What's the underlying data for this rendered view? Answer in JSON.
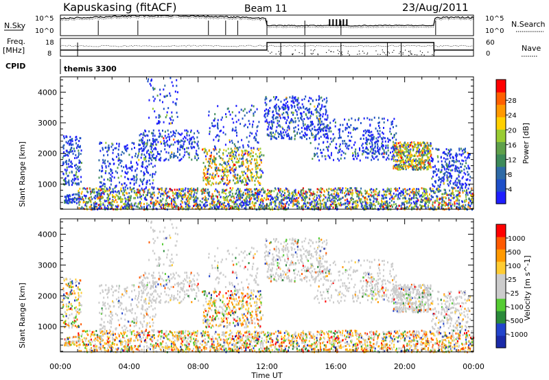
{
  "header": {
    "station": "Kapuskasing (fitACF)",
    "beam": "Beam 11",
    "date": "23/Aug/2011"
  },
  "strip_labels": {
    "n_sky": "N.Sky",
    "freq_line1": "Freq.",
    "freq_line2": "[MHz]",
    "cpid": "CPID",
    "n_search": "N.Search",
    "nave": "Nave",
    "cpid_value": "themis 3300",
    "noise_ticks": [
      "10^5",
      "10^0"
    ],
    "freq_ticks": [
      "18",
      "8"
    ],
    "nave_ticks": [
      "60",
      "0"
    ]
  },
  "chart_data": [
    {
      "type": "heatmap",
      "title": "",
      "ylabel": "Slant Range [km]",
      "xlabel": "",
      "ylim": [
        180,
        4500
      ],
      "xlim_hours": [
        0,
        24
      ],
      "yticks": [
        1000,
        2000,
        3000,
        4000
      ],
      "colorbar": {
        "label": "Power [dB]",
        "ticks": [
          "4",
          "8",
          "12",
          "16",
          "20",
          "24",
          "28"
        ],
        "colors": [
          "#1f1fff",
          "#1e4fc8",
          "#2e6aa6",
          "#3d8a5a",
          "#5fa04a",
          "#99cc33",
          "#ffd000",
          "#ff9900",
          "#ff6000",
          "#ff0000"
        ]
      }
    },
    {
      "type": "heatmap",
      "title": "",
      "ylabel": "Slant Range [km]",
      "xlabel": "Time UT",
      "ylim": [
        180,
        4500
      ],
      "xlim_hours": [
        0,
        24
      ],
      "yticks": [
        1000,
        2000,
        3000,
        4000
      ],
      "xtick_labels": [
        "00:00",
        "04:00",
        "08:00",
        "12:00",
        "16:00",
        "20:00",
        "00:00"
      ],
      "colorbar": {
        "label": "Velocity [m s^-1]",
        "ticks": [
          "1000",
          "500",
          "100",
          "25",
          "-25",
          "-100",
          "-500",
          "-1000"
        ],
        "colors": [
          "#1a2aa8",
          "#2244cc",
          "#2a8a3a",
          "#55cc33",
          "#cccccc",
          "#cccccc",
          "#ffcc33",
          "#ff9900",
          "#ff5a00",
          "#ff0000"
        ]
      }
    }
  ]
}
